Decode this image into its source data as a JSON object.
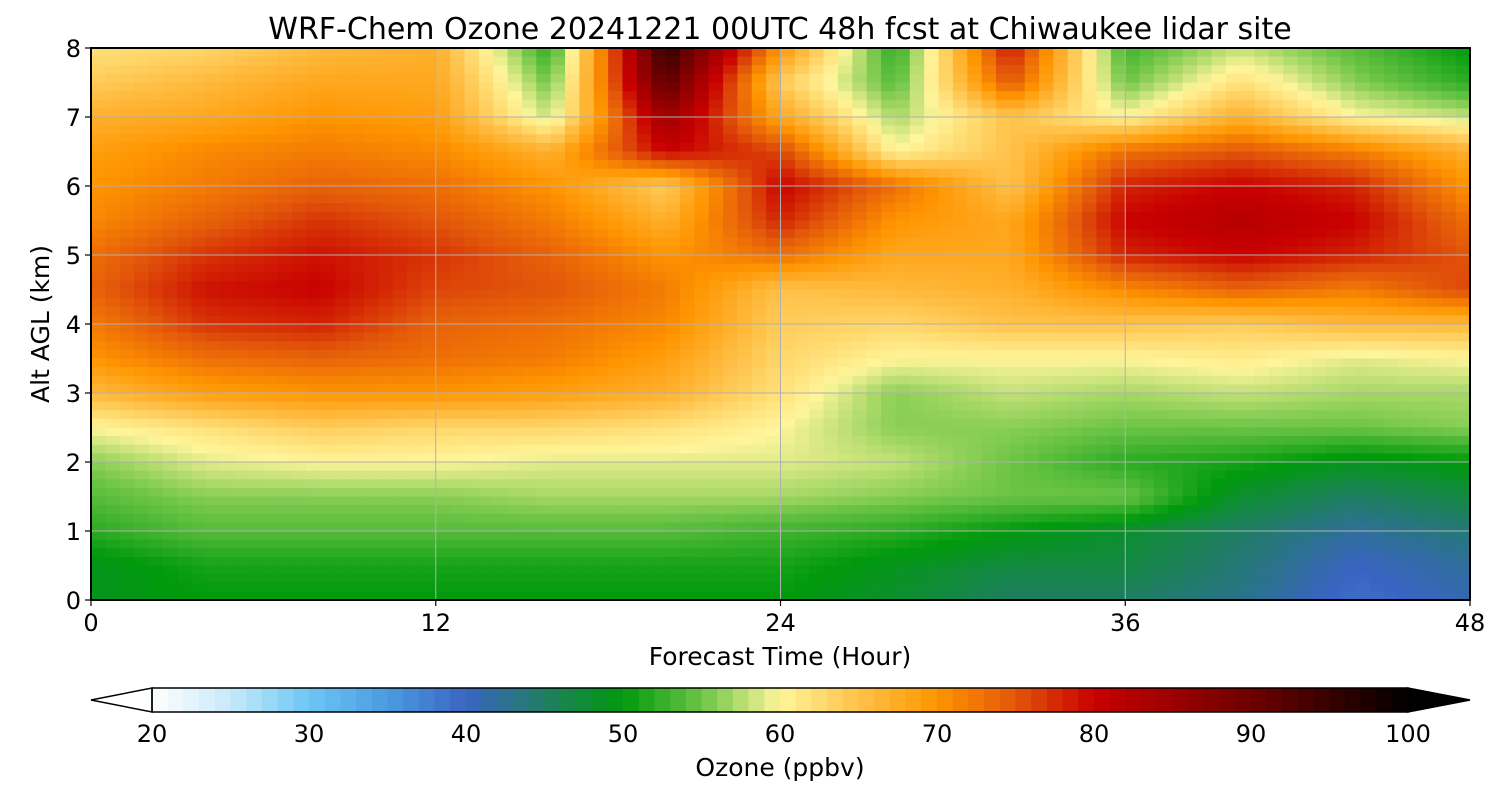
{
  "chart_data": {
    "type": "heatmap",
    "title": "WRF-Chem Ozone  20241221 00UTC 48h fcst at Chiwaukee lidar site",
    "xlabel": "Forecast Time (Hour)",
    "ylabel": "Alt AGL (km)",
    "xlim": [
      0,
      48
    ],
    "ylim": [
      0,
      8
    ],
    "xticks": [
      "0",
      "12",
      "24",
      "36",
      "48"
    ],
    "yticks": [
      "0",
      "1",
      "2",
      "3",
      "4",
      "5",
      "6",
      "7",
      "8"
    ],
    "grid": true,
    "x_hours": [
      0,
      4,
      8,
      12,
      16,
      20,
      24,
      28,
      32,
      36,
      40,
      44,
      48
    ],
    "y_km": [
      0,
      0.5,
      1,
      1.5,
      2,
      2.5,
      3,
      3.5,
      4,
      4.5,
      5,
      5.5,
      6,
      6.5,
      7,
      7.5,
      8
    ],
    "ozone_ppbv": [
      [
        49,
        50,
        50,
        50,
        50,
        50,
        50,
        48,
        45,
        45,
        43,
        39,
        41
      ],
      [
        49,
        51,
        51,
        51,
        51,
        51,
        51,
        49,
        47,
        47,
        44,
        40,
        42
      ],
      [
        52,
        54,
        54,
        54,
        54,
        54,
        53,
        52,
        50,
        48,
        45,
        42,
        44
      ],
      [
        54,
        56,
        56,
        56,
        57,
        57,
        57,
        56,
        55,
        55,
        48,
        45,
        47
      ],
      [
        56,
        59,
        60,
        60,
        59,
        59,
        59,
        58,
        55,
        52,
        51,
        49,
        50
      ],
      [
        60,
        62,
        64,
        63,
        63,
        62,
        60,
        56,
        56,
        55,
        55,
        55,
        56
      ],
      [
        66,
        69,
        70,
        70,
        69,
        67,
        62,
        56,
        58,
        57,
        58,
        57,
        57
      ],
      [
        70,
        73,
        74,
        73,
        72,
        69,
        63,
        60,
        60,
        60,
        61,
        59,
        60
      ],
      [
        72,
        77,
        78,
        74,
        73,
        71,
        64,
        63,
        65,
        65,
        64,
        66,
        66
      ],
      [
        74,
        79,
        80,
        76,
        75,
        72,
        65,
        66,
        67,
        71,
        74,
        72,
        76
      ],
      [
        73,
        77,
        79,
        77,
        74,
        70,
        73,
        68,
        68,
        78,
        80,
        78,
        75
      ],
      [
        71,
        74,
        77,
        75,
        72,
        67,
        78,
        70,
        68,
        80,
        82,
        80,
        73
      ],
      [
        70,
        72,
        74,
        73,
        70,
        64,
        80,
        73,
        65,
        78,
        80,
        78,
        70
      ],
      [
        69,
        71,
        72,
        71,
        67,
        80,
        76,
        60,
        65,
        73,
        75,
        72,
        67
      ],
      [
        67,
        68,
        70,
        69,
        58,
        85,
        68,
        57,
        65,
        60,
        67,
        60,
        58
      ],
      [
        64,
        66,
        68,
        68,
        55,
        92,
        64,
        54,
        75,
        55,
        62,
        56,
        52
      ],
      [
        62,
        63,
        66,
        67,
        52,
        96,
        70,
        52,
        79,
        53,
        58,
        54,
        50
      ]
    ],
    "colorbar": {
      "label": "Ozone  (ppbv)",
      "ticks": [
        "20",
        "30",
        "40",
        "50",
        "60",
        "70",
        "80",
        "90",
        "100"
      ],
      "range": [
        20,
        100
      ],
      "extend": "both",
      "colormap": [
        [
          20,
          "#ffffff"
        ],
        [
          25,
          "#c7e9f9"
        ],
        [
          30,
          "#6cc6f5"
        ],
        [
          35,
          "#4b9be0"
        ],
        [
          40,
          "#3a64c2"
        ],
        [
          45,
          "#1f7d63"
        ],
        [
          50,
          "#009a0c"
        ],
        [
          55,
          "#6cc446"
        ],
        [
          60,
          "#fff59a"
        ],
        [
          65,
          "#ffc24a"
        ],
        [
          70,
          "#ff9500"
        ],
        [
          75,
          "#e2560a"
        ],
        [
          80,
          "#c80000"
        ],
        [
          90,
          "#6e0000"
        ],
        [
          100,
          "#000000"
        ]
      ]
    }
  }
}
